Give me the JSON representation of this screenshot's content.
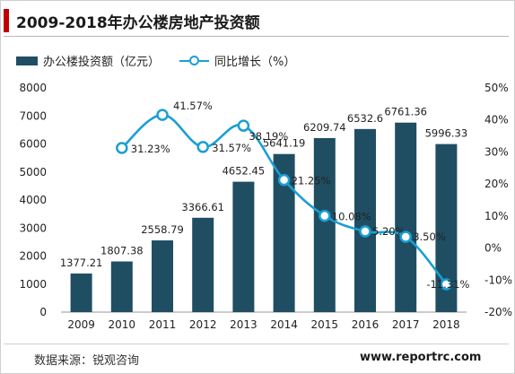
{
  "title": "2009-2018年办公楼房地产投资额",
  "legend": {
    "bar_label": "办公楼投资额（亿元）",
    "line_label": "同比增长（%）"
  },
  "source": "数据来源：锐观咨询",
  "website": "www.reportrc.com",
  "colors": {
    "bar": "#1f4e63",
    "line": "#1a9fd4",
    "accent": "#c00000"
  },
  "chart_data": {
    "type": "bar+line",
    "title": "2009-2018年办公楼房地产投资额",
    "categories": [
      "2009",
      "2010",
      "2011",
      "2012",
      "2013",
      "2014",
      "2015",
      "2016",
      "2017",
      "2018"
    ],
    "series": [
      {
        "name": "办公楼投资额（亿元）",
        "type": "bar",
        "axis": "left",
        "values": [
          1377.21,
          1807.38,
          2558.79,
          3366.61,
          4652.45,
          5641.19,
          6209.74,
          6532.6,
          6761.36,
          5996.33
        ],
        "labels": [
          "1377.21",
          "1807.38",
          "2558.79",
          "3366.61",
          "4652.45",
          "5641.19",
          "6209.74",
          "6532.6",
          "6761.36",
          "5996.33"
        ]
      },
      {
        "name": "同比增长（%）",
        "type": "line",
        "axis": "right",
        "values": [
          null,
          31.23,
          41.57,
          31.57,
          38.19,
          21.25,
          10.08,
          5.2,
          3.5,
          -11.31
        ],
        "labels": [
          "",
          "31.23%",
          "41.57%",
          "31.57%",
          "38.19%",
          "21.25%",
          "10.08%",
          "5.20%",
          "3.50%",
          "-11.31%"
        ]
      }
    ],
    "y_left": {
      "min": 0,
      "max": 8000,
      "step": 1000,
      "ticks": [
        "0",
        "1000",
        "2000",
        "3000",
        "4000",
        "5000",
        "6000",
        "7000",
        "8000"
      ]
    },
    "y_right": {
      "min": -20,
      "max": 50,
      "step": 10,
      "ticks": [
        "-20%",
        "-10%",
        "0%",
        "10%",
        "20%",
        "30%",
        "40%",
        "50%"
      ]
    },
    "grid": false,
    "legend_position": "top-left"
  }
}
